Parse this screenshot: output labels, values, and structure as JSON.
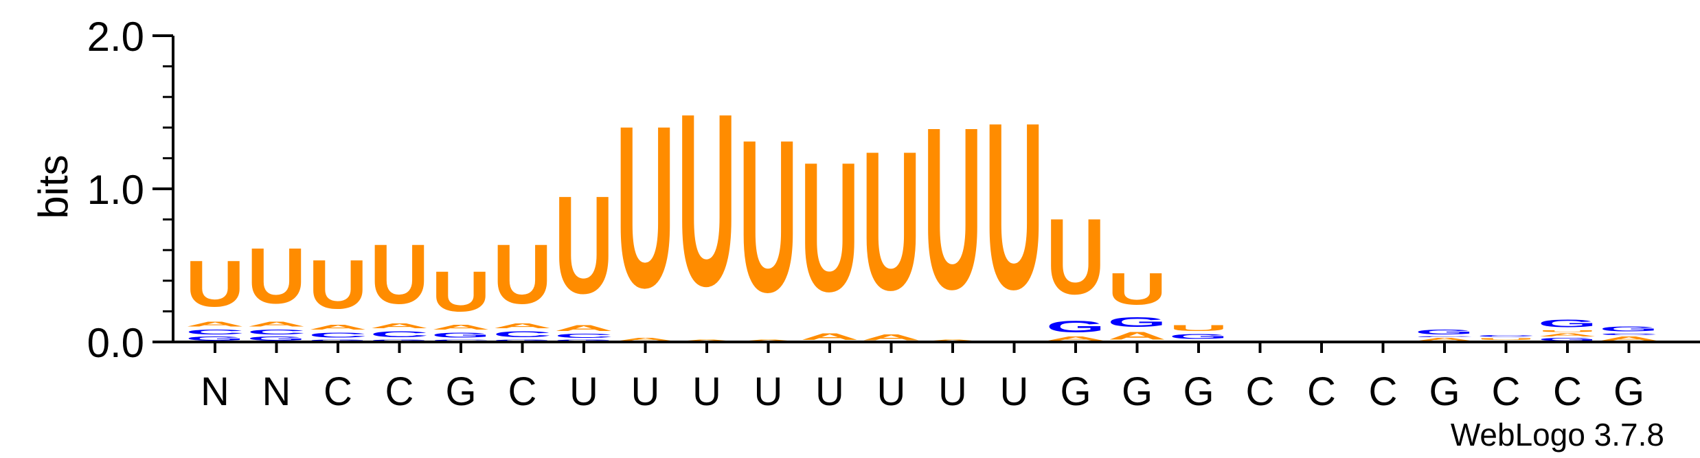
{
  "chart_data": {
    "type": "sequence-logo",
    "ylabel": "bits",
    "ylim": [
      0,
      2.0
    ],
    "yticks": [
      {
        "value": 0.0,
        "label": "0.0"
      },
      {
        "value": 1.0,
        "label": "1.0"
      },
      {
        "value": 2.0,
        "label": "2.0"
      }
    ],
    "colors": {
      "U": "#ff8c00",
      "A": "#ff8c00",
      "C": "#0000ff",
      "G": "#0000ff"
    },
    "positions": [
      {
        "label": "N",
        "stack": [
          {
            "base": "G",
            "bits": 0.04
          },
          {
            "base": "C",
            "bits": 0.05
          },
          {
            "base": "A",
            "bits": 0.05
          },
          {
            "base": "U",
            "bits": 0.48
          }
        ]
      },
      {
        "label": "N",
        "stack": [
          {
            "base": "G",
            "bits": 0.04
          },
          {
            "base": "C",
            "bits": 0.05
          },
          {
            "base": "A",
            "bits": 0.05
          },
          {
            "base": "U",
            "bits": 0.58
          }
        ]
      },
      {
        "label": "C",
        "stack": [
          {
            "base": "G",
            "bits": 0.02
          },
          {
            "base": "C",
            "bits": 0.05
          },
          {
            "base": "A",
            "bits": 0.05
          },
          {
            "base": "U",
            "bits": 0.51
          }
        ]
      },
      {
        "label": "C",
        "stack": [
          {
            "base": "G",
            "bits": 0.02
          },
          {
            "base": "C",
            "bits": 0.06
          },
          {
            "base": "A",
            "bits": 0.05
          },
          {
            "base": "U",
            "bits": 0.62
          }
        ]
      },
      {
        "label": "G",
        "stack": [
          {
            "base": "C",
            "bits": 0.02
          },
          {
            "base": "G",
            "bits": 0.05
          },
          {
            "base": "A",
            "bits": 0.05
          },
          {
            "base": "U",
            "bits": 0.42
          }
        ]
      },
      {
        "label": "C",
        "stack": [
          {
            "base": "G",
            "bits": 0.02
          },
          {
            "base": "C",
            "bits": 0.06
          },
          {
            "base": "A",
            "bits": 0.05
          },
          {
            "base": "U",
            "bits": 0.62
          }
        ]
      },
      {
        "label": "U",
        "stack": [
          {
            "base": "G",
            "bits": 0.02
          },
          {
            "base": "C",
            "bits": 0.04
          },
          {
            "base": "A",
            "bits": 0.06
          },
          {
            "base": "U",
            "bits": 1.02
          }
        ]
      },
      {
        "label": "U",
        "stack": [
          {
            "base": "A",
            "bits": 0.03
          },
          {
            "base": "U",
            "bits": 1.69
          }
        ]
      },
      {
        "label": "U",
        "stack": [
          {
            "base": "A",
            "bits": 0.02
          },
          {
            "base": "U",
            "bits": 1.8
          }
        ]
      },
      {
        "label": "U",
        "stack": [
          {
            "base": "A",
            "bits": 0.02
          },
          {
            "base": "U",
            "bits": 1.59
          }
        ]
      },
      {
        "label": "U",
        "stack": [
          {
            "base": "A",
            "bits": 0.07
          },
          {
            "base": "U",
            "bits": 1.35
          }
        ]
      },
      {
        "label": "U",
        "stack": [
          {
            "base": "A",
            "bits": 0.06
          },
          {
            "base": "U",
            "bits": 1.45
          }
        ]
      },
      {
        "label": "U",
        "stack": [
          {
            "base": "A",
            "bits": 0.02
          },
          {
            "base": "U",
            "bits": 1.69
          }
        ]
      },
      {
        "label": "U",
        "stack": [
          {
            "base": "A",
            "bits": 0.01
          },
          {
            "base": "U",
            "bits": 1.74
          }
        ]
      },
      {
        "label": "G",
        "stack": [
          {
            "base": "A",
            "bits": 0.04
          },
          {
            "base": "G",
            "bits": 0.12
          },
          {
            "base": "U",
            "bits": 0.79
          }
        ]
      },
      {
        "label": "G",
        "stack": [
          {
            "base": "A",
            "bits": 0.08
          },
          {
            "base": "G",
            "bits": 0.1
          },
          {
            "base": "U",
            "bits": 0.33
          }
        ]
      },
      {
        "label": "G",
        "stack": [
          {
            "base": "C",
            "bits": 0.01
          },
          {
            "base": "G",
            "bits": 0.05
          },
          {
            "base": "U",
            "bits": 0.06
          }
        ]
      },
      {
        "label": "C",
        "stack": [
          {
            "base": "A",
            "bits": 0.01
          }
        ]
      },
      {
        "label": "C",
        "stack": [
          {
            "base": "A",
            "bits": 0.01
          }
        ]
      },
      {
        "label": "C",
        "stack": [
          {
            "base": "A",
            "bits": 0.01
          }
        ]
      },
      {
        "label": "G",
        "stack": [
          {
            "base": "A",
            "bits": 0.03
          },
          {
            "base": "C",
            "bits": 0.01
          },
          {
            "base": "G",
            "bits": 0.05
          }
        ]
      },
      {
        "label": "C",
        "stack": [
          {
            "base": "A",
            "bits": 0.01
          },
          {
            "base": "U",
            "bits": 0.02
          },
          {
            "base": "C",
            "bits": 0.02
          }
        ]
      },
      {
        "label": "C",
        "stack": [
          {
            "base": "G",
            "bits": 0.03
          },
          {
            "base": "A",
            "bits": 0.03
          },
          {
            "base": "U",
            "bits": 0.02
          },
          {
            "base": "G",
            "bits": 0.08
          }
        ]
      },
      {
        "label": "G",
        "stack": [
          {
            "base": "A",
            "bits": 0.04
          },
          {
            "base": "C",
            "bits": 0.02
          },
          {
            "base": "G",
            "bits": 0.05
          }
        ]
      }
    ],
    "credit": "WebLogo 3.7.8"
  }
}
